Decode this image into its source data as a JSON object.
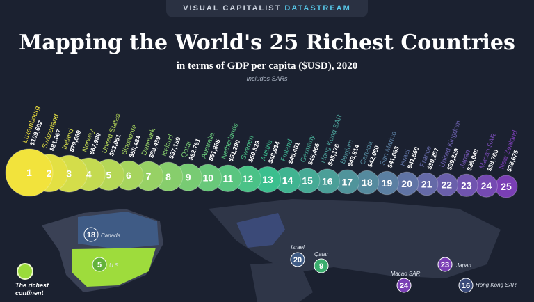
{
  "header": {
    "brand": "VISUAL CAPITALIST",
    "brand_accent": "DATASTREAM",
    "title": "Mapping the World's 25 Richest Countries",
    "subtitle": "in terms of GDP per capita ($USD), 2020",
    "note": "Includes SARs"
  },
  "legend_text": "The richest continent",
  "map_labels": {
    "canada": {
      "rank": "18",
      "name": "Canada"
    },
    "us": {
      "rank": "5",
      "name": "U.S."
    },
    "israel": {
      "rank": "20",
      "name": "Israel"
    },
    "qatar": {
      "rank": "9",
      "name": "Qatar"
    },
    "japan": {
      "rank": "23",
      "name": "Japan"
    },
    "macao": {
      "rank": "24",
      "name": "Macao SAR"
    },
    "hongkong": {
      "rank": "16",
      "name": "Hong Kong SAR"
    }
  },
  "colors": {
    "background": "#1b2130",
    "start": "#f2e33c",
    "mid": "#3bbf8e",
    "end": "#7a3fb5"
  },
  "chart_data": {
    "type": "bar",
    "title": "Mapping the World's 25 Richest Countries",
    "subtitle": "in terms of GDP per capita ($USD), 2020",
    "categories": [
      "Luxembourg",
      "Switzerland",
      "Ireland",
      "Norway",
      "United States",
      "Singapore",
      "Denmark",
      "Iceland",
      "Qatar",
      "Australia",
      "Netherlands",
      "Sweden",
      "Austria",
      "Finland",
      "Germany",
      "Hong Kong SAR",
      "Belgium",
      "Canada",
      "San Marino",
      "Israel",
      "France",
      "United Kingdom",
      "Japan",
      "Macao SAR",
      "New Zealand"
    ],
    "ranks": [
      1,
      2,
      3,
      4,
      5,
      6,
      7,
      8,
      9,
      10,
      11,
      12,
      13,
      14,
      15,
      16,
      17,
      18,
      19,
      20,
      21,
      22,
      23,
      24,
      25
    ],
    "values": [
      109602,
      81867,
      79669,
      67989,
      63051,
      58484,
      58439,
      57189,
      52751,
      51885,
      51290,
      50339,
      48634,
      48461,
      45466,
      45176,
      43814,
      42080,
      41663,
      41560,
      39257,
      39229,
      39048,
      38769,
      38675
    ],
    "value_labels": [
      "$109,602",
      "$81,867",
      "$79,669",
      "$67,989",
      "$63,051",
      "$58,484",
      "$58,439",
      "$57,189",
      "$52,751",
      "$51,885",
      "$51,290",
      "$50,339",
      "$48,634",
      "$48,461",
      "$45,466",
      "$45,176",
      "$43,814",
      "$42,080",
      "$41,663",
      "$41,560",
      "$39,257",
      "$39,229",
      "$39,048",
      "$38,769",
      "$38,675"
    ],
    "ylabel": "GDP per capita ($USD)"
  }
}
